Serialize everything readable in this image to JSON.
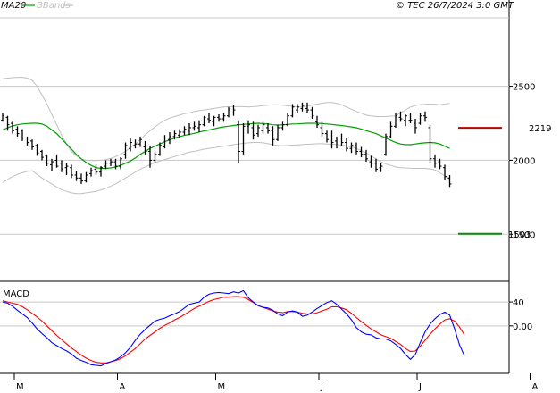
{
  "header": {
    "ma_label": "MA20",
    "bands_label": "BBands",
    "watermark": "© TEC 26/7/2024 3:0 GMT"
  },
  "colors": {
    "ma": "#00a000",
    "bands": "#c0c0c0",
    "bars": "#000000",
    "grid": "#c8c8c8",
    "resistance": "#c00000",
    "support": "#009000",
    "macd": "#0000ff",
    "signal": "#ff0000"
  },
  "chart_data": [
    {
      "type": "ohlc",
      "title": "",
      "ylim": [
        1200,
        2950
      ],
      "y_ticks": [
        {
          "v": 2500,
          "label": "2500"
        },
        {
          "v": 2000,
          "label": "2000"
        },
        {
          "v": 1500,
          "label": "1500"
        }
      ],
      "x_ticks": [
        {
          "i": 2,
          "label": "M"
        },
        {
          "i": 23,
          "label": "A"
        },
        {
          "i": 43,
          "label": "M"
        },
        {
          "i": 64,
          "label": "J"
        },
        {
          "i": 84,
          "label": "J"
        },
        {
          "i": 107,
          "label": "A"
        }
      ],
      "levels": {
        "resistance": {
          "value": 2219,
          "label": "2219"
        },
        "support": {
          "value": 1503,
          "label": "1503"
        }
      },
      "series": [
        {
          "name": "MA20",
          "values": [
            2205,
            2220,
            2232,
            2240,
            2245,
            2248,
            2250,
            2250,
            2245,
            2230,
            2205,
            2180,
            2145,
            2110,
            2075,
            2040,
            2010,
            1985,
            1965,
            1950,
            1945,
            1945,
            1948,
            1955,
            1965,
            1980,
            1995,
            2015,
            2040,
            2060,
            2080,
            2095,
            2110,
            2125,
            2138,
            2150,
            2160,
            2168,
            2175,
            2182,
            2190,
            2198,
            2205,
            2212,
            2220,
            2226,
            2230,
            2235,
            2240,
            2242,
            2245,
            2248,
            2250,
            2248,
            2245,
            2240,
            2238,
            2240,
            2242,
            2245,
            2246,
            2248,
            2250,
            2250,
            2250,
            2248,
            2245,
            2242,
            2238,
            2235,
            2230,
            2225,
            2220,
            2210,
            2200,
            2190,
            2180,
            2165,
            2150,
            2135,
            2120,
            2110,
            2105,
            2105,
            2110,
            2115,
            2118,
            2120,
            2118,
            2110,
            2095,
            2080
          ]
        },
        {
          "name": "BB Upper",
          "values": [
            2550,
            2555,
            2558,
            2560,
            2560,
            2555,
            2540,
            2500,
            2440,
            2380,
            2310,
            2240,
            2170,
            2110,
            2060,
            2030,
            2010,
            2000,
            1998,
            1998,
            2000,
            2005,
            2012,
            2025,
            2040,
            2060,
            2085,
            2110,
            2140,
            2170,
            2200,
            2225,
            2250,
            2270,
            2285,
            2295,
            2305,
            2315,
            2320,
            2330,
            2335,
            2340,
            2345,
            2350,
            2355,
            2360,
            2362,
            2362,
            2362,
            2362,
            2360,
            2362,
            2365,
            2370,
            2372,
            2375,
            2375,
            2372,
            2368,
            2365,
            2360,
            2360,
            2365,
            2372,
            2380,
            2385,
            2390,
            2390,
            2385,
            2375,
            2360,
            2345,
            2330,
            2318,
            2305,
            2300,
            2295,
            2295,
            2295,
            2298,
            2300,
            2320,
            2340,
            2360,
            2370,
            2375,
            2378,
            2380,
            2378,
            2375,
            2380,
            2385
          ]
        },
        {
          "name": "BB Lower",
          "values": [
            1850,
            1870,
            1890,
            1905,
            1915,
            1925,
            1930,
            1905,
            1880,
            1860,
            1840,
            1820,
            1800,
            1790,
            1780,
            1775,
            1775,
            1780,
            1785,
            1790,
            1800,
            1810,
            1825,
            1840,
            1860,
            1880,
            1900,
            1920,
            1940,
            1955,
            1970,
            1985,
            1995,
            2005,
            2015,
            2025,
            2035,
            2045,
            2055,
            2060,
            2068,
            2075,
            2080,
            2085,
            2090,
            2095,
            2100,
            2105,
            2110,
            2115,
            2118,
            2120,
            2120,
            2118,
            2112,
            2105,
            2100,
            2098,
            2100,
            2102,
            2104,
            2106,
            2108,
            2110,
            2112,
            2112,
            2110,
            2108,
            2106,
            2102,
            2096,
            2090,
            2080,
            2065,
            2050,
            2030,
            2010,
            1990,
            1975,
            1965,
            1955,
            1950,
            1948,
            1946,
            1945,
            1945,
            1945,
            1942,
            1935,
            1915,
            1895,
            1870
          ]
        }
      ],
      "ohlc": [
        [
          2270,
          2320,
          2260,
          2300
        ],
        [
          2290,
          2300,
          2200,
          2240
        ],
        [
          2250,
          2260,
          2180,
          2200
        ],
        [
          2210,
          2230,
          2160,
          2180
        ],
        [
          2200,
          2210,
          2130,
          2150
        ],
        [
          2150,
          2160,
          2100,
          2120
        ],
        [
          2130,
          2140,
          2070,
          2090
        ],
        [
          2100,
          2110,
          2030,
          2050
        ],
        [
          2060,
          2070,
          2000,
          2020
        ],
        [
          2030,
          2040,
          1960,
          1980
        ],
        [
          1970,
          2010,
          1930,
          1990
        ],
        [
          2000,
          2040,
          1950,
          1960
        ],
        [
          1980,
          2000,
          1920,
          1940
        ],
        [
          1950,
          1980,
          1900,
          1960
        ],
        [
          1950,
          1970,
          1880,
          1900
        ],
        [
          1900,
          1930,
          1860,
          1880
        ],
        [
          1880,
          1910,
          1840,
          1860
        ],
        [
          1860,
          1920,
          1850,
          1900
        ],
        [
          1910,
          1950,
          1890,
          1930
        ],
        [
          1940,
          1970,
          1900,
          1920
        ],
        [
          1920,
          1960,
          1890,
          1950
        ],
        [
          1960,
          2000,
          1940,
          1980
        ],
        [
          1980,
          2010,
          1960,
          1990
        ],
        [
          1990,
          2010,
          1940,
          1960
        ],
        [
          1960,
          2020,
          1940,
          2010
        ],
        [
          2040,
          2120,
          2010,
          2100
        ],
        [
          2080,
          2150,
          2060,
          2120
        ],
        [
          2100,
          2140,
          2080,
          2110
        ],
        [
          2110,
          2160,
          2090,
          2140
        ],
        [
          2090,
          2130,
          2040,
          2060
        ],
        [
          2060,
          2100,
          1950,
          2000
        ],
        [
          2000,
          2060,
          1980,
          2040
        ],
        [
          2040,
          2120,
          2030,
          2100
        ],
        [
          2090,
          2170,
          2080,
          2150
        ],
        [
          2140,
          2190,
          2110,
          2160
        ],
        [
          2160,
          2200,
          2140,
          2180
        ],
        [
          2170,
          2210,
          2150,
          2190
        ],
        [
          2190,
          2230,
          2170,
          2210
        ],
        [
          2200,
          2250,
          2170,
          2220
        ],
        [
          2220,
          2260,
          2200,
          2230
        ],
        [
          2220,
          2270,
          2190,
          2240
        ],
        [
          2240,
          2300,
          2230,
          2290
        ],
        [
          2280,
          2320,
          2250,
          2270
        ],
        [
          2260,
          2300,
          2230,
          2290
        ],
        [
          2290,
          2310,
          2260,
          2280
        ],
        [
          2280,
          2320,
          2260,
          2300
        ],
        [
          2300,
          2360,
          2290,
          2340
        ],
        [
          2320,
          2370,
          2300,
          2340
        ],
        [
          2240,
          2270,
          1980,
          2060
        ],
        [
          2060,
          2250,
          2040,
          2230
        ],
        [
          2230,
          2270,
          2180,
          2240
        ],
        [
          2220,
          2260,
          2140,
          2170
        ],
        [
          2180,
          2240,
          2160,
          2220
        ],
        [
          2200,
          2260,
          2180,
          2240
        ],
        [
          2220,
          2250,
          2180,
          2200
        ],
        [
          2200,
          2230,
          2100,
          2140
        ],
        [
          2140,
          2240,
          2130,
          2220
        ],
        [
          2220,
          2260,
          2200,
          2240
        ],
        [
          2240,
          2320,
          2230,
          2300
        ],
        [
          2300,
          2380,
          2290,
          2360
        ],
        [
          2340,
          2380,
          2320,
          2360
        ],
        [
          2350,
          2390,
          2330,
          2370
        ],
        [
          2350,
          2390,
          2320,
          2340
        ],
        [
          2340,
          2360,
          2280,
          2300
        ],
        [
          2260,
          2300,
          2220,
          2240
        ],
        [
          2220,
          2260,
          2160,
          2180
        ],
        [
          2180,
          2200,
          2120,
          2140
        ],
        [
          2150,
          2200,
          2080,
          2120
        ],
        [
          2130,
          2160,
          2080,
          2150
        ],
        [
          2150,
          2180,
          2100,
          2120
        ],
        [
          2120,
          2150,
          2060,
          2080
        ],
        [
          2080,
          2120,
          2050,
          2100
        ],
        [
          2100,
          2120,
          2040,
          2060
        ],
        [
          2060,
          2090,
          2020,
          2040
        ],
        [
          2040,
          2070,
          1990,
          2010
        ],
        [
          1990,
          2030,
          1950,
          1980
        ],
        [
          1980,
          2010,
          1920,
          1940
        ],
        [
          1950,
          1980,
          1920,
          1960
        ],
        [
          2040,
          2180,
          2030,
          2160
        ],
        [
          2160,
          2260,
          2150,
          2230
        ],
        [
          2230,
          2320,
          2220,
          2300
        ],
        [
          2290,
          2330,
          2260,
          2280
        ],
        [
          2270,
          2310,
          2230,
          2300
        ],
        [
          2270,
          2320,
          2250,
          2270
        ],
        [
          2250,
          2280,
          2180,
          2220
        ],
        [
          2250,
          2320,
          2240,
          2300
        ],
        [
          2300,
          2330,
          2260,
          2290
        ],
        [
          2220,
          2240,
          1980,
          2010
        ],
        [
          2010,
          2040,
          1950,
          1980
        ],
        [
          1990,
          2010,
          1940,
          1960
        ],
        [
          1950,
          1970,
          1870,
          1890
        ],
        [
          1880,
          1900,
          1820,
          1840
        ]
      ]
    },
    {
      "type": "line",
      "title": "MACD",
      "ylim": [
        -75,
        70
      ],
      "y_ticks": [
        {
          "v": 40,
          "label": "40"
        },
        {
          "v": 0,
          "label": "0.00"
        }
      ],
      "series": [
        {
          "name": "MACD",
          "values": [
            40,
            38,
            33,
            26,
            20,
            14,
            5,
            -5,
            -13,
            -20,
            -28,
            -33,
            -38,
            -42,
            -47,
            -54,
            -58,
            -61,
            -65,
            -66,
            -67,
            -63,
            -60,
            -57,
            -52,
            -45,
            -36,
            -24,
            -14,
            -6,
            1,
            8,
            11,
            13,
            17,
            20,
            24,
            30,
            36,
            38,
            40,
            48,
            53,
            55,
            56,
            55,
            54,
            57,
            55,
            59,
            47,
            40,
            34,
            31,
            30,
            26,
            20,
            17,
            23,
            25,
            23,
            16,
            18,
            23,
            29,
            34,
            39,
            42,
            36,
            28,
            20,
            10,
            -3,
            -10,
            -14,
            -15,
            -20,
            -22,
            -22,
            -25,
            -31,
            -38,
            -48,
            -56,
            -48,
            -28,
            -10,
            3,
            12,
            19,
            23,
            18,
            -5,
            -32,
            -50
          ]
        },
        {
          "name": "Signal",
          "values": [
            42,
            40,
            38,
            36,
            32,
            27,
            21,
            15,
            8,
            0,
            -8,
            -16,
            -23,
            -30,
            -37,
            -43,
            -49,
            -54,
            -58,
            -61,
            -62,
            -62,
            -60,
            -58,
            -55,
            -50,
            -44,
            -38,
            -30,
            -22,
            -16,
            -10,
            -4,
            1,
            5,
            10,
            14,
            19,
            24,
            29,
            33,
            37,
            41,
            44,
            46,
            48,
            48,
            49,
            49,
            48,
            44,
            39,
            34,
            31,
            28,
            25,
            23,
            22,
            24,
            24,
            23,
            21,
            20,
            20,
            22,
            25,
            28,
            32,
            32,
            30,
            27,
            21,
            14,
            7,
            1,
            -5,
            -10,
            -15,
            -18,
            -21,
            -26,
            -31,
            -38,
            -43,
            -42,
            -34,
            -24,
            -14,
            -5,
            3,
            10,
            12,
            8,
            -2,
            -15
          ]
        }
      ]
    }
  ]
}
